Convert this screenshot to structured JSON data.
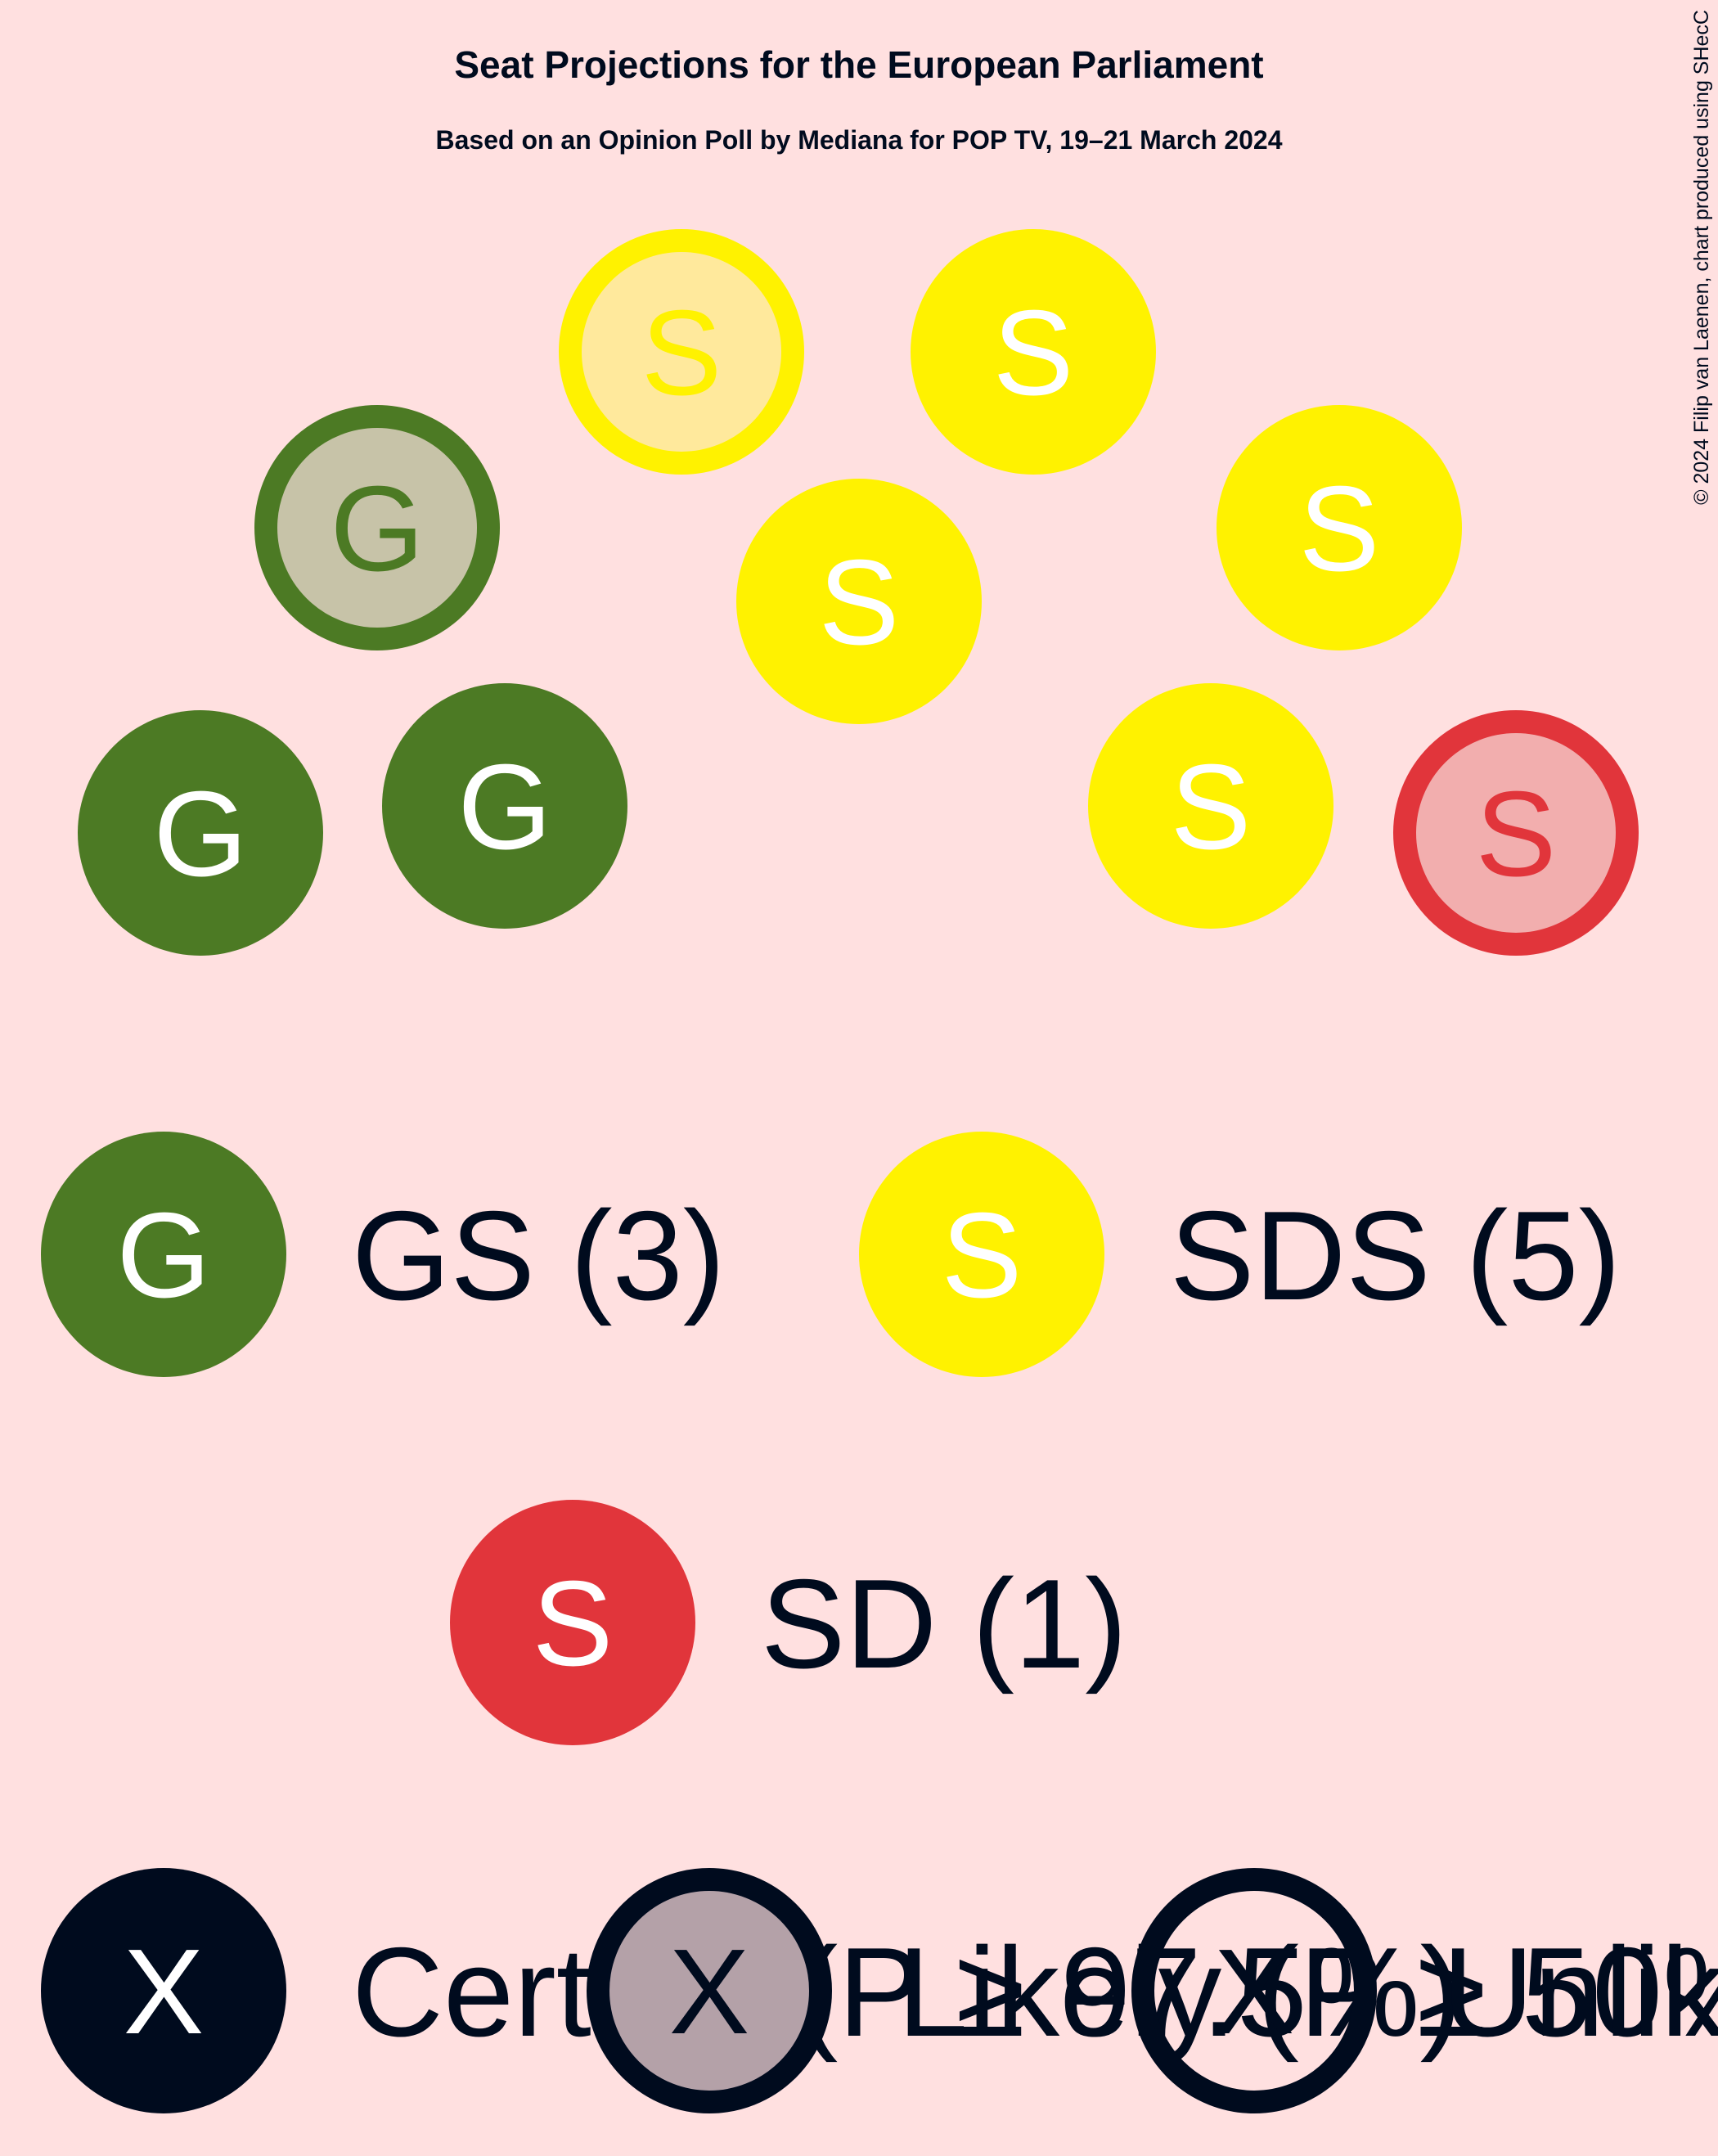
{
  "chart_data": {
    "type": "parliament",
    "title": "Seat Projections for the European Parliament",
    "subtitle": "Based on an Opinion Poll by Mediana for POP TV, 19–21 March 2024",
    "copyright": "© 2024 Filip van Laenen, chart produced using SHecC",
    "colors": {
      "background": "#ffe0e0",
      "text": "#000b1e",
      "GS": "#4c7a24",
      "GS_light": "#c7c3a8",
      "SDS": "#fff200",
      "SDS_light": "#ffe99c",
      "SD": "#e1353b",
      "SD_light": "#f2aeae"
    },
    "seats": [
      {
        "party": "GS",
        "letter": "G",
        "status": "certain"
      },
      {
        "party": "GS",
        "letter": "G",
        "status": "certain"
      },
      {
        "party": "GS",
        "letter": "G",
        "status": "likely"
      },
      {
        "party": "SDS",
        "letter": "S",
        "status": "likely"
      },
      {
        "party": "SDS",
        "letter": "S",
        "status": "certain"
      },
      {
        "party": "SDS",
        "letter": "S",
        "status": "certain"
      },
      {
        "party": "SDS",
        "letter": "S",
        "status": "certain"
      },
      {
        "party": "SDS",
        "letter": "S",
        "status": "certain"
      },
      {
        "party": "SD",
        "letter": "S",
        "status": "likely"
      }
    ],
    "legend": [
      {
        "party": "GS",
        "letter": "G",
        "label": "GS (3)"
      },
      {
        "party": "SDS",
        "letter": "S",
        "label": "SDS (5)"
      },
      {
        "party": "SD",
        "letter": "S",
        "label": "SD (1)"
      }
    ],
    "status_legend": [
      {
        "status": "certain",
        "letter": "X",
        "label": "Certain (P ≥ 97.5%)"
      },
      {
        "status": "likely",
        "letter": "X",
        "label": "Likely (P ≥ 50%)"
      },
      {
        "status": "unlikely",
        "letter": "X",
        "label": "Unlikely"
      }
    ]
  }
}
